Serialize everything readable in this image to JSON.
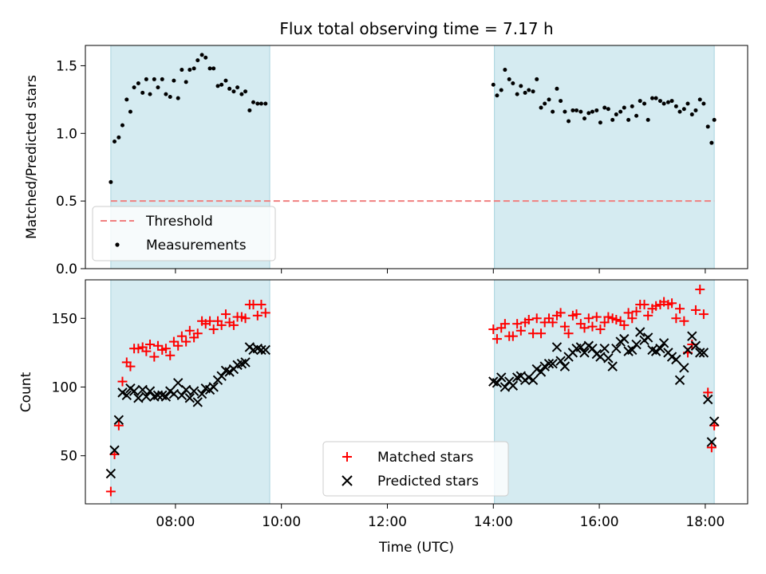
{
  "chart_data": {
    "title": "Flux total observing time = 7.17 h",
    "xlabel": "Time (UTC)",
    "x_unit": "hours (UTC)",
    "xlim": [
      6.3,
      18.8
    ],
    "x_ticks": [
      {
        "value": 8,
        "label": "08:00"
      },
      {
        "value": 10,
        "label": "10:00"
      },
      {
        "value": 12,
        "label": "12:00"
      },
      {
        "value": 14,
        "label": "14:00"
      },
      {
        "value": 16,
        "label": "16:00"
      },
      {
        "value": 18,
        "label": "18:00"
      }
    ],
    "observing_windows": [
      [
        6.78,
        9.78
      ],
      [
        14.02,
        18.17
      ]
    ],
    "colors": {
      "window": "#d5ebf1",
      "window_edge": "#a9d3df",
      "threshold": "#f08080",
      "matched": "#ff0000",
      "predicted": "#000000",
      "measurements": "#000000"
    },
    "panels": [
      {
        "type": "scatter",
        "ylabel": "Matched/Predicted stars",
        "ylim": [
          0,
          1.65
        ],
        "y_ticks": [
          0.0,
          0.5,
          1.0,
          1.5
        ],
        "y_tick_labels": [
          "0.0",
          "0.5",
          "1.0",
          "1.5"
        ],
        "legend_position": "lower-left",
        "threshold": {
          "name": "Threshold",
          "value": 0.5,
          "x_range": [
            6.78,
            18.17
          ]
        },
        "series": [
          {
            "name": "Measurements",
            "marker": "dot",
            "x": [
              6.78,
              6.85,
              6.93,
              7.0,
              7.08,
              7.15,
              7.22,
              7.3,
              7.38,
              7.45,
              7.52,
              7.6,
              7.67,
              7.75,
              7.82,
              7.9,
              7.97,
              8.05,
              8.12,
              8.2,
              8.27,
              8.35,
              8.42,
              8.5,
              8.57,
              8.65,
              8.72,
              8.8,
              8.87,
              8.95,
              9.02,
              9.1,
              9.17,
              9.25,
              9.32,
              9.4,
              9.47,
              9.55,
              9.62,
              9.7,
              14.0,
              14.07,
              14.15,
              14.22,
              14.3,
              14.37,
              14.45,
              14.52,
              14.6,
              14.67,
              14.75,
              14.82,
              14.9,
              14.97,
              15.05,
              15.12,
              15.2,
              15.27,
              15.35,
              15.42,
              15.5,
              15.57,
              15.65,
              15.72,
              15.8,
              15.87,
              15.95,
              16.02,
              16.1,
              16.17,
              16.25,
              16.32,
              16.4,
              16.47,
              16.55,
              16.62,
              16.7,
              16.77,
              16.85,
              16.92,
              17.0,
              17.07,
              17.15,
              17.22,
              17.3,
              17.37,
              17.45,
              17.52,
              17.6,
              17.67,
              17.75,
              17.82,
              17.9,
              17.97,
              18.05,
              18.12,
              18.17
            ],
            "y": [
              0.64,
              0.94,
              0.97,
              1.06,
              1.25,
              1.16,
              1.34,
              1.37,
              1.3,
              1.4,
              1.29,
              1.4,
              1.34,
              1.4,
              1.29,
              1.27,
              1.39,
              1.26,
              1.47,
              1.38,
              1.47,
              1.48,
              1.54,
              1.58,
              1.56,
              1.48,
              1.48,
              1.35,
              1.36,
              1.39,
              1.33,
              1.31,
              1.34,
              1.29,
              1.31,
              1.17,
              1.23,
              1.22,
              1.22,
              1.22,
              1.36,
              1.28,
              1.32,
              1.47,
              1.4,
              1.37,
              1.29,
              1.35,
              1.3,
              1.32,
              1.31,
              1.4,
              1.19,
              1.22,
              1.25,
              1.16,
              1.33,
              1.24,
              1.16,
              1.09,
              1.17,
              1.17,
              1.16,
              1.11,
              1.15,
              1.16,
              1.17,
              1.08,
              1.19,
              1.18,
              1.1,
              1.14,
              1.16,
              1.19,
              1.1,
              1.2,
              1.13,
              1.24,
              1.22,
              1.1,
              1.26,
              1.26,
              1.24,
              1.22,
              1.23,
              1.24,
              1.2,
              1.16,
              1.18,
              1.22,
              1.14,
              1.17,
              1.25,
              1.22,
              1.05,
              0.93,
              1.1
            ]
          }
        ]
      },
      {
        "type": "scatter",
        "ylabel": "Count",
        "ylim": [
          15,
          178
        ],
        "y_ticks": [
          50,
          100,
          150
        ],
        "y_tick_labels": [
          "50",
          "100",
          "150"
        ],
        "legend_position": "lower-center",
        "series": [
          {
            "name": "Matched stars",
            "marker": "plus",
            "x": [
              6.78,
              6.85,
              6.93,
              7.0,
              7.08,
              7.15,
              7.22,
              7.3,
              7.38,
              7.45,
              7.52,
              7.6,
              7.67,
              7.75,
              7.82,
              7.9,
              7.97,
              8.05,
              8.12,
              8.2,
              8.27,
              8.35,
              8.42,
              8.5,
              8.57,
              8.65,
              8.72,
              8.8,
              8.87,
              8.95,
              9.02,
              9.1,
              9.17,
              9.25,
              9.32,
              9.4,
              9.47,
              9.55,
              9.62,
              9.7,
              14.0,
              14.07,
              14.15,
              14.22,
              14.3,
              14.37,
              14.45,
              14.52,
              14.6,
              14.67,
              14.75,
              14.82,
              14.9,
              14.97,
              15.05,
              15.12,
              15.2,
              15.27,
              15.35,
              15.42,
              15.5,
              15.57,
              15.65,
              15.72,
              15.8,
              15.87,
              15.95,
              16.02,
              16.1,
              16.17,
              16.25,
              16.32,
              16.4,
              16.47,
              16.55,
              16.62,
              16.7,
              16.77,
              16.85,
              16.92,
              17.0,
              17.07,
              17.15,
              17.22,
              17.3,
              17.37,
              17.45,
              17.52,
              17.6,
              17.67,
              17.75,
              17.82,
              17.9,
              17.97,
              18.05,
              18.12,
              18.17
            ],
            "y": [
              24,
              51,
              72,
              104,
              118,
              115,
              128,
              128,
              129,
              126,
              131,
              122,
              130,
              127,
              128,
              123,
              133,
              130,
              137,
              133,
              141,
              136,
              139,
              148,
              146,
              148,
              142,
              148,
              145,
              153,
              147,
              145,
              151,
              151,
              150,
              160,
              160,
              152,
              160,
              154,
              142,
              135,
              143,
              146,
              137,
              137,
              146,
              141,
              147,
              149,
              139,
              150,
              139,
              147,
              150,
              147,
              152,
              154,
              144,
              139,
              152,
              153,
              146,
              143,
              150,
              144,
              151,
              142,
              147,
              151,
              150,
              149,
              148,
              145,
              154,
              150,
              155,
              160,
              160,
              152,
              157,
              159,
              160,
              162,
              160,
              161,
              150,
              157,
              148,
              125,
              131,
              156,
              171,
              153,
              96,
              56,
              72
            ]
          },
          {
            "name": "Predicted stars",
            "marker": "x",
            "x": [
              6.78,
              6.85,
              6.93,
              7.0,
              7.08,
              7.15,
              7.22,
              7.3,
              7.38,
              7.45,
              7.52,
              7.6,
              7.67,
              7.75,
              7.82,
              7.9,
              7.97,
              8.05,
              8.12,
              8.2,
              8.27,
              8.35,
              8.42,
              8.5,
              8.57,
              8.65,
              8.72,
              8.8,
              8.87,
              8.95,
              9.02,
              9.1,
              9.17,
              9.25,
              9.32,
              9.4,
              9.47,
              9.55,
              9.62,
              9.7,
              14.0,
              14.07,
              14.15,
              14.22,
              14.3,
              14.37,
              14.45,
              14.52,
              14.6,
              14.67,
              14.75,
              14.82,
              14.9,
              14.97,
              15.05,
              15.12,
              15.2,
              15.27,
              15.35,
              15.42,
              15.5,
              15.57,
              15.65,
              15.72,
              15.8,
              15.87,
              15.95,
              16.02,
              16.1,
              16.17,
              16.25,
              16.32,
              16.4,
              16.47,
              16.55,
              16.62,
              16.7,
              16.77,
              16.85,
              16.92,
              17.0,
              17.07,
              17.15,
              17.22,
              17.3,
              17.37,
              17.45,
              17.52,
              17.6,
              17.67,
              17.75,
              17.82,
              17.9,
              17.97,
              18.05,
              18.12,
              18.17
            ],
            "y": [
              37,
              54,
              76,
              96,
              94,
              99,
              97,
              92,
              98,
              93,
              97,
              93,
              94,
              94,
              93,
              97,
              95,
              103,
              94,
              98,
              92,
              97,
              89,
              95,
              99,
              98,
              100,
              105,
              108,
              112,
              111,
              113,
              116,
              117,
              118,
              129,
              127,
              128,
              127,
              127,
              104,
              103,
              107,
              100,
              104,
              101,
              107,
              108,
              105,
              107,
              105,
              113,
              111,
              115,
              117,
              117,
              129,
              119,
              115,
              122,
              125,
              128,
              129,
              125,
              130,
              128,
              124,
              122,
              128,
              121,
              115,
              128,
              133,
              135,
              126,
              127,
              131,
              140,
              134,
              136,
              127,
              126,
              128,
              132,
              125,
              122,
              120,
              105,
              114,
              127,
              137,
              130,
              125,
              125,
              91,
              60,
              75
            ]
          }
        ]
      }
    ]
  }
}
